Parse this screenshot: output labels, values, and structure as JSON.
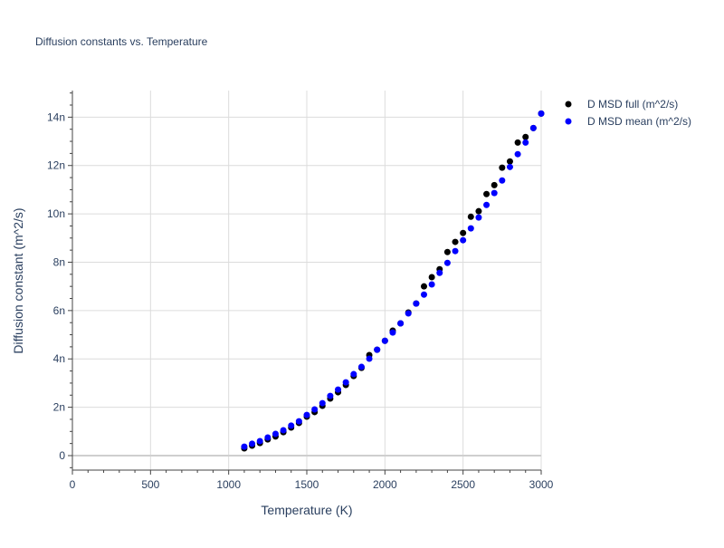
{
  "chart_data": {
    "type": "scatter",
    "title": "Diffusion constants vs. Temperature",
    "xlabel": "Temperature (K)",
    "ylabel": "Diffusion constant (m^2/s)",
    "xlim": [
      0,
      3000
    ],
    "ylim": [
      -6e-10,
      1.51e-08
    ],
    "grid": true,
    "legend_position": "top-right",
    "x_ticks": [
      0,
      500,
      1000,
      1500,
      2000,
      2500,
      3000
    ],
    "x_tick_labels": [
      "0",
      "500",
      "1000",
      "1500",
      "2000",
      "2500",
      "3000"
    ],
    "y_ticks": [
      0,
      2e-09,
      4e-09,
      6e-09,
      8e-09,
      1e-08,
      1.2e-08,
      1.4e-08
    ],
    "y_tick_labels": [
      "0",
      "2n",
      "4n",
      "6n",
      "8n",
      "10n",
      "12n",
      "14n"
    ],
    "x": [
      1100,
      1150,
      1200,
      1250,
      1300,
      1350,
      1400,
      1450,
      1500,
      1550,
      1600,
      1650,
      1700,
      1750,
      1800,
      1850,
      1900,
      1950,
      2000,
      2050,
      2100,
      2150,
      2200,
      2250,
      2300,
      2350,
      2400,
      2450,
      2500,
      2550,
      2600,
      2650,
      2700,
      2750,
      2800,
      2850,
      2900,
      2950,
      3000
    ],
    "series": [
      {
        "name": "D MSD full (m^2/s)",
        "color": "#000000",
        "values_n": [
          0.3,
          0.41,
          0.52,
          0.67,
          0.79,
          0.97,
          1.16,
          1.35,
          1.61,
          1.8,
          2.06,
          2.36,
          2.62,
          2.92,
          3.29,
          3.63,
          4.16,
          4.38,
          4.75,
          5.17,
          5.47,
          5.92,
          6.29,
          7.0,
          7.38,
          7.71,
          8.42,
          8.84,
          9.21,
          9.88,
          10.11,
          10.82,
          11.19,
          11.91,
          12.17,
          12.95,
          13.18,
          13.55,
          14.15
        ]
      },
      {
        "name": "D MSD mean (m^2/s)",
        "color": "#0000ff",
        "values_n": [
          0.37,
          0.49,
          0.6,
          0.75,
          0.9,
          1.05,
          1.24,
          1.42,
          1.68,
          1.91,
          2.17,
          2.47,
          2.73,
          3.03,
          3.37,
          3.67,
          4.01,
          4.38,
          4.75,
          5.09,
          5.47,
          5.88,
          6.29,
          6.66,
          7.08,
          7.56,
          7.97,
          8.46,
          8.91,
          9.4,
          9.85,
          10.37,
          10.86,
          11.38,
          11.94,
          12.47,
          12.95,
          13.55,
          14.15
        ]
      }
    ]
  }
}
